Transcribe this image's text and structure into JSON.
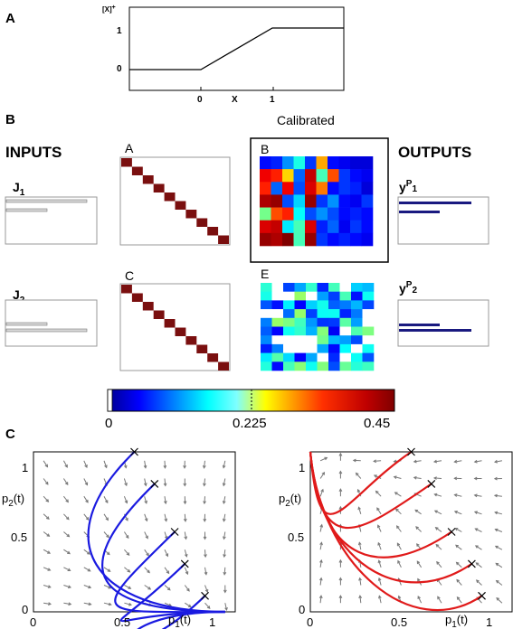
{
  "panels": {
    "A": {
      "label": "A",
      "ylabel": "[X]",
      "ylabel_sup": "+",
      "xlabel": "X",
      "xticks": [
        "0",
        "1"
      ],
      "yticks": [
        "0",
        "1"
      ]
    },
    "B": {
      "label": "B",
      "inputs_title": "INPUTS",
      "outputs_title": "OUTPUTS",
      "calibrated_label": "Calibrated",
      "input1": {
        "label": "J",
        "sub": "1"
      },
      "input2": {
        "label": "J",
        "sub": "2"
      },
      "output1": {
        "label": "y",
        "sup": "P",
        "sub": "1"
      },
      "output2": {
        "label": "y",
        "sup": "P",
        "sub": "2"
      },
      "matrix_labels": {
        "A": "A",
        "B": "B",
        "C": "C",
        "E": "E"
      },
      "colorbar": {
        "ticks": [
          "0",
          "0.225",
          "0.45"
        ],
        "min": 0,
        "mid": 0.225,
        "max": 0.45
      }
    },
    "C": {
      "label": "C",
      "left": {
        "xlabel": "p",
        "xsub": "1",
        "xsuffix": "(t)",
        "ylabel": "p",
        "ysub": "2",
        "ysuffix": "(t)",
        "xticks": [
          "0",
          "0.5",
          "1"
        ],
        "yticks": [
          "0",
          "0.5",
          "1"
        ],
        "curve_color": "#1a1ae0"
      },
      "right": {
        "xlabel": "p",
        "xsub": "1",
        "xsuffix": "(t)",
        "ylabel": "p",
        "ysub": "2",
        "ysuffix": "(t)",
        "xticks": [
          "0",
          "0.5",
          "1"
        ],
        "yticks": [
          "0",
          "0.5",
          "1"
        ],
        "curve_color": "#e01a1a"
      }
    }
  },
  "chart_data": [
    {
      "type": "line",
      "panel": "A",
      "x": [
        -1,
        0,
        1,
        2
      ],
      "y": [
        0,
        0,
        1,
        1
      ],
      "xlim": [
        -1,
        2
      ],
      "ylim": [
        -0.5,
        1.5
      ]
    },
    {
      "type": "line",
      "panel": "C-left",
      "xlim": [
        0,
        1
      ],
      "ylim": [
        0,
        1
      ],
      "start_points": [
        [
          0.5,
          1.0
        ],
        [
          0.6,
          0.8
        ],
        [
          0.7,
          0.5
        ],
        [
          0.75,
          0.3
        ],
        [
          0.85,
          0.1
        ]
      ],
      "end_point": [
        0.95,
        0.0
      ]
    },
    {
      "type": "line",
      "panel": "C-right",
      "xlim": [
        0,
        1
      ],
      "ylim": [
        0,
        1
      ],
      "start_points": [
        [
          0.5,
          1.0
        ],
        [
          0.6,
          0.8
        ],
        [
          0.7,
          0.5
        ],
        [
          0.8,
          0.3
        ],
        [
          0.85,
          0.1
        ]
      ],
      "end_point": [
        0.0,
        1.0
      ]
    }
  ]
}
